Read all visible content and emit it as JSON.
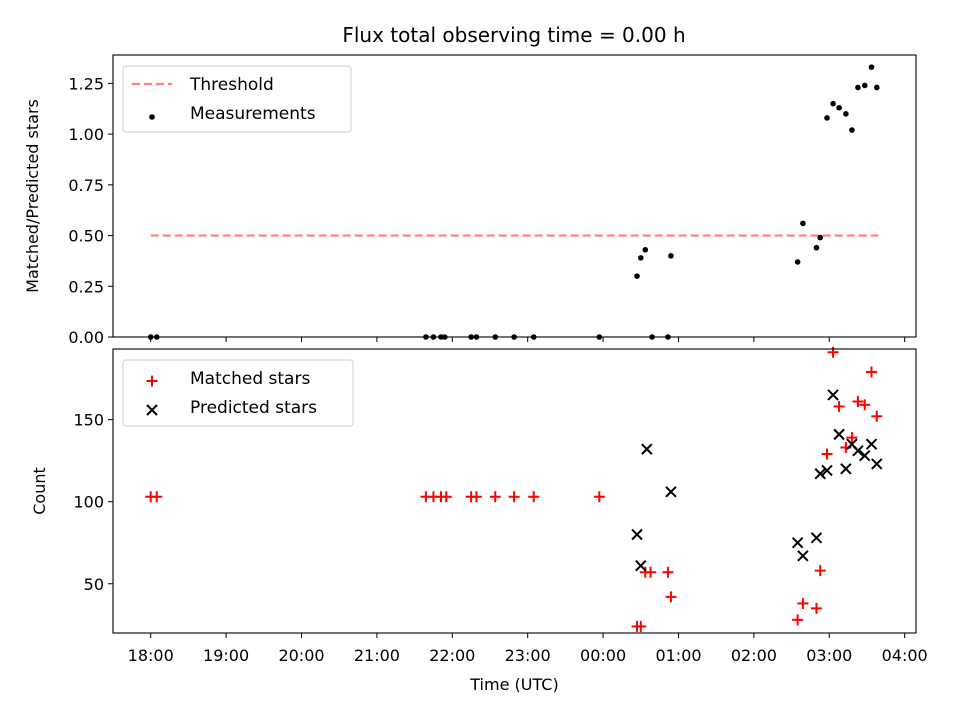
{
  "title": "Flux total observing time = 0.00 h",
  "chart_data": [
    {
      "type": "scatter",
      "title": "Flux total observing time = 0.00 h",
      "xlabel": "",
      "ylabel": "Matched/Predicted stars",
      "xlim": [
        17.5,
        28.15
      ],
      "ylim": [
        0.0,
        1.39
      ],
      "y_ticks": [
        "0.00",
        "0.25",
        "0.50",
        "0.75",
        "1.00",
        "1.25"
      ],
      "legend_position": "top-left",
      "threshold": {
        "name": "Threshold",
        "y": 0.5,
        "x_range": [
          18.0,
          27.65
        ],
        "color": "#ff7f7f",
        "style": "dashed"
      },
      "series": [
        {
          "name": "Measurements",
          "color": "#000000",
          "marker": "dot",
          "points": [
            [
              18.0,
              0.0
            ],
            [
              18.08,
              0.0
            ],
            [
              21.65,
              0.0
            ],
            [
              21.75,
              0.0
            ],
            [
              21.85,
              0.0
            ],
            [
              21.9,
              0.0
            ],
            [
              22.25,
              0.0
            ],
            [
              22.32,
              0.0
            ],
            [
              22.57,
              0.0
            ],
            [
              22.82,
              0.0
            ],
            [
              23.08,
              0.0
            ],
            [
              23.95,
              0.0
            ],
            [
              24.45,
              0.3
            ],
            [
              24.5,
              0.39
            ],
            [
              24.56,
              0.43
            ],
            [
              24.65,
              0.0
            ],
            [
              24.86,
              0.0
            ],
            [
              24.9,
              0.4
            ],
            [
              26.58,
              0.37
            ],
            [
              26.65,
              0.56
            ],
            [
              26.83,
              0.44
            ],
            [
              26.88,
              0.49
            ],
            [
              26.97,
              1.08
            ],
            [
              27.05,
              1.15
            ],
            [
              27.13,
              1.13
            ],
            [
              27.22,
              1.1
            ],
            [
              27.3,
              1.02
            ],
            [
              27.38,
              1.23
            ],
            [
              27.47,
              1.24
            ],
            [
              27.56,
              1.33
            ],
            [
              27.63,
              1.23
            ]
          ]
        }
      ]
    },
    {
      "type": "scatter",
      "xlabel": "Time (UTC)",
      "ylabel": "Count",
      "xlim": [
        17.5,
        28.15
      ],
      "ylim": [
        20.0,
        193.0
      ],
      "x_ticks": [
        "18:00",
        "19:00",
        "20:00",
        "21:00",
        "22:00",
        "23:00",
        "00:00",
        "01:00",
        "02:00",
        "03:00",
        "04:00"
      ],
      "y_ticks": [
        "50",
        "100",
        "150"
      ],
      "legend_position": "top-left",
      "series": [
        {
          "name": "Matched stars",
          "color": "#ff0000",
          "marker": "plus",
          "points": [
            [
              18.0,
              103
            ],
            [
              18.08,
              103
            ],
            [
              21.65,
              103
            ],
            [
              21.75,
              103
            ],
            [
              21.85,
              103
            ],
            [
              21.92,
              103
            ],
            [
              22.25,
              103
            ],
            [
              22.32,
              103
            ],
            [
              22.57,
              103
            ],
            [
              22.82,
              103
            ],
            [
              23.08,
              103
            ],
            [
              23.95,
              103
            ],
            [
              24.45,
              24
            ],
            [
              24.5,
              24
            ],
            [
              24.56,
              57
            ],
            [
              24.63,
              57
            ],
            [
              24.86,
              57
            ],
            [
              24.9,
              42
            ],
            [
              26.58,
              28
            ],
            [
              26.65,
              38
            ],
            [
              26.83,
              35
            ],
            [
              26.88,
              58
            ],
            [
              26.97,
              129
            ],
            [
              27.05,
              191
            ],
            [
              27.13,
              158
            ],
            [
              27.22,
              133
            ],
            [
              27.3,
              139
            ],
            [
              27.38,
              161
            ],
            [
              27.47,
              159
            ],
            [
              27.56,
              179
            ],
            [
              27.63,
              152
            ]
          ]
        },
        {
          "name": "Predicted stars",
          "color": "#000000",
          "marker": "x",
          "points": [
            [
              24.45,
              80
            ],
            [
              24.5,
              61
            ],
            [
              24.58,
              132
            ],
            [
              24.9,
              106
            ],
            [
              26.58,
              75
            ],
            [
              26.65,
              67
            ],
            [
              26.83,
              78
            ],
            [
              26.88,
              117
            ],
            [
              26.97,
              119
            ],
            [
              27.05,
              165
            ],
            [
              27.13,
              141
            ],
            [
              27.22,
              120
            ],
            [
              27.3,
              135
            ],
            [
              27.38,
              131
            ],
            [
              27.47,
              128
            ],
            [
              27.56,
              135
            ],
            [
              27.63,
              123
            ]
          ]
        }
      ]
    }
  ]
}
